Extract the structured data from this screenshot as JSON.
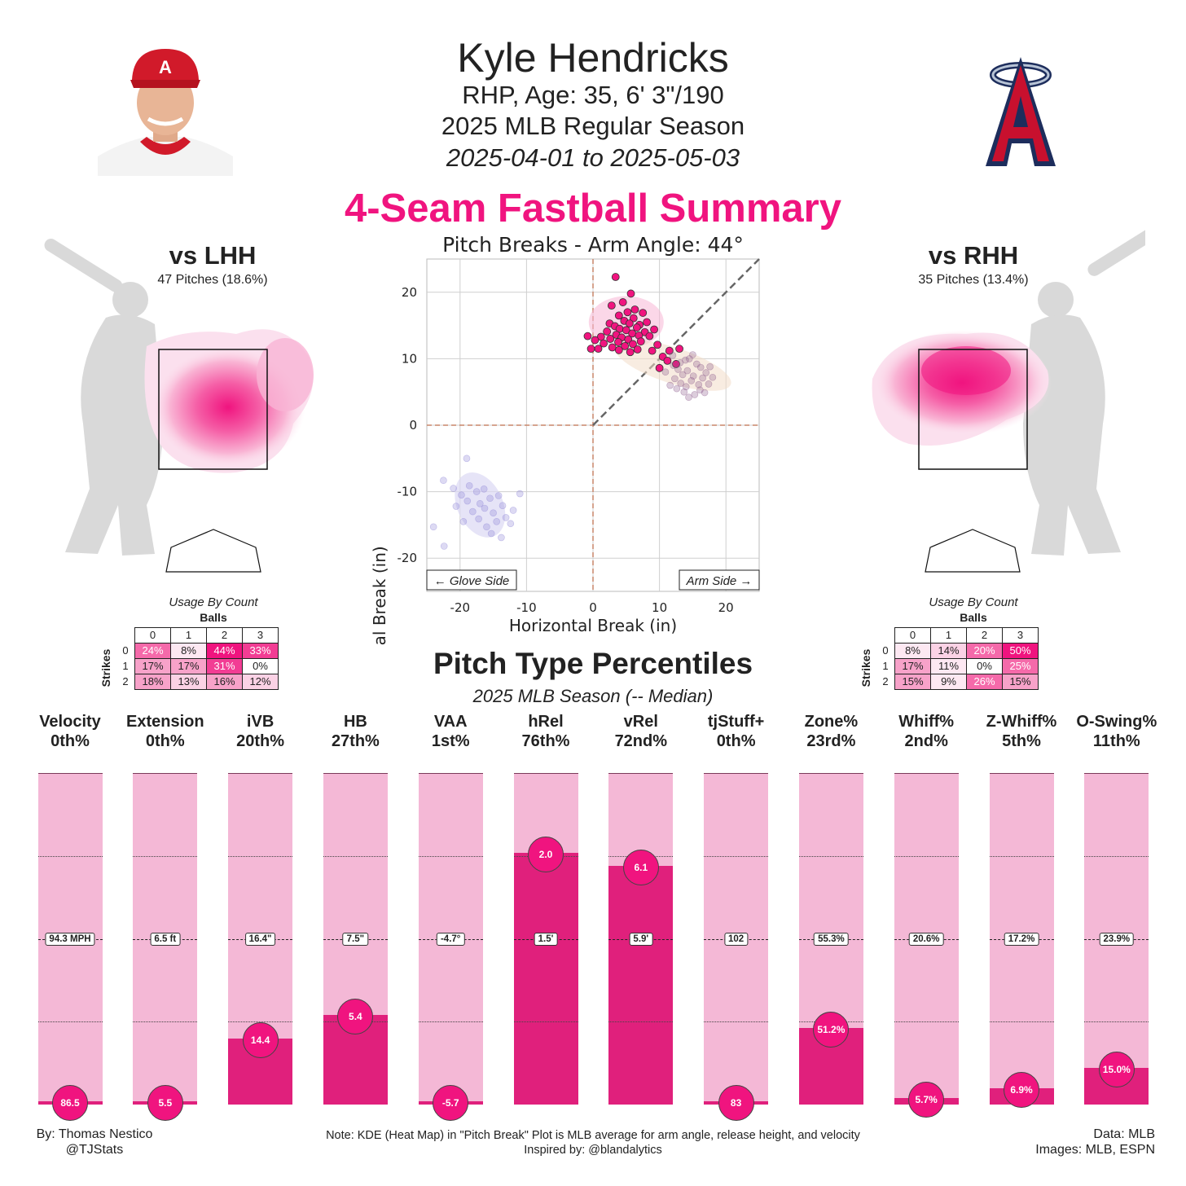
{
  "header": {
    "name": "Kyle Hendricks",
    "info": "RHP, Age: 35, 6' 3\"/190",
    "season": "2025 MLB Regular Season",
    "dates": "2025-04-01 to 2025-05-03",
    "summary_title": "4-Seam Fastball Summary"
  },
  "lhh": {
    "title": "vs LHH",
    "pitches": "47 Pitches (18.6%)",
    "usage_title": "Usage By Count",
    "balls_label": "Balls",
    "strikes_label": "Strikes",
    "ball_headers": [
      "0",
      "1",
      "2",
      "3"
    ],
    "rows": [
      {
        "strikes": "0",
        "cells": [
          "24%",
          "8%",
          "44%",
          "33%"
        ]
      },
      {
        "strikes": "1",
        "cells": [
          "17%",
          "17%",
          "31%",
          "0%"
        ]
      },
      {
        "strikes": "2",
        "cells": [
          "18%",
          "13%",
          "16%",
          "12%"
        ]
      }
    ]
  },
  "rhh": {
    "title": "vs RHH",
    "pitches": "35 Pitches (13.4%)",
    "usage_title": "Usage By Count",
    "balls_label": "Balls",
    "strikes_label": "Strikes",
    "ball_headers": [
      "0",
      "1",
      "2",
      "3"
    ],
    "rows": [
      {
        "strikes": "0",
        "cells": [
          "8%",
          "14%",
          "20%",
          "50%"
        ]
      },
      {
        "strikes": "1",
        "cells": [
          "17%",
          "11%",
          "0%",
          "25%"
        ]
      },
      {
        "strikes": "2",
        "cells": [
          "15%",
          "9%",
          "26%",
          "15%"
        ]
      }
    ]
  },
  "break_plot": {
    "title": "Pitch Breaks - Arm Angle: 44°",
    "xlabel": "Horizontal Break (in)",
    "ylabel": "Induced Vertical Break (in)",
    "glove_side": "← Glove Side",
    "arm_side": "Arm Side →"
  },
  "percentiles": {
    "title": "Pitch Type Percentiles",
    "subtitle": "2025 MLB Season (-- Median)"
  },
  "footer": {
    "by": "By: Thomas Nestico",
    "handle": "@TJStats",
    "note": "Note: KDE (Heat Map) in \"Pitch Break\" Plot is MLB average for arm angle, release height, and velocity",
    "inspired": "Inspired by: @blandalytics",
    "data": "Data: MLB",
    "images": "Images: MLB, ESPN"
  },
  "colors": {
    "accent": "#f0147f",
    "bar_bg": "#f4b8d6",
    "bar_fill": "#e0207c"
  },
  "chart_data": [
    {
      "type": "scatter",
      "title": "Pitch Breaks - Arm Angle: 44°",
      "xlabel": "Horizontal Break (in)",
      "ylabel": "Induced Vertical Break (in)",
      "xlim": [
        -25,
        25
      ],
      "ylim": [
        -25,
        25
      ],
      "xticks": [
        -20,
        -10,
        0,
        10,
        20
      ],
      "yticks": [
        -20,
        -10,
        0,
        10,
        20
      ],
      "grid": true,
      "series": [
        {
          "kind": "4-Seam Fastball",
          "color": "#f0147f",
          "points": [
            [
              3.4,
              22.3
            ],
            [
              5.7,
              19.8
            ],
            [
              4.5,
              18.5
            ],
            [
              2.8,
              18.0
            ],
            [
              6.3,
              17.4
            ],
            [
              5.2,
              17.0
            ],
            [
              7.5,
              16.9
            ],
            [
              3.9,
              16.5
            ],
            [
              6.1,
              16.1
            ],
            [
              4.7,
              15.7
            ],
            [
              2.5,
              15.3
            ],
            [
              8.1,
              15.5
            ],
            [
              5.5,
              15.3
            ],
            [
              7.0,
              15.1
            ],
            [
              3.3,
              14.9
            ],
            [
              6.6,
              14.7
            ],
            [
              4.0,
              14.5
            ],
            [
              5.0,
              14.3
            ],
            [
              9.2,
              14.4
            ],
            [
              2.1,
              14.1
            ],
            [
              7.8,
              14.0
            ],
            [
              5.9,
              13.8
            ],
            [
              3.5,
              13.6
            ],
            [
              6.9,
              13.5
            ],
            [
              1.2,
              13.3
            ],
            [
              4.3,
              13.2
            ],
            [
              8.5,
              13.4
            ],
            [
              -0.8,
              13.4
            ],
            [
              2.6,
              13.0
            ],
            [
              5.3,
              12.9
            ],
            [
              0.3,
              12.8
            ],
            [
              7.2,
              12.6
            ],
            [
              3.8,
              12.5
            ],
            [
              1.6,
              12.3
            ],
            [
              6.0,
              12.2
            ],
            [
              9.7,
              12.1
            ],
            [
              4.8,
              11.9
            ],
            [
              2.9,
              11.7
            ],
            [
              0.8,
              11.5
            ],
            [
              -0.3,
              11.5
            ],
            [
              6.7,
              11.4
            ],
            [
              3.9,
              11.3
            ],
            [
              8.9,
              11.2
            ],
            [
              11.5,
              11.2
            ],
            [
              5.6,
              11.0
            ],
            [
              13.0,
              11.5
            ],
            [
              10.5,
              10.3
            ],
            [
              11.2,
              9.7
            ],
            [
              12.5,
              9.2
            ],
            [
              10.0,
              8.6
            ]
          ]
        },
        {
          "kind": "Changeup / Sinker (ghost)",
          "color": "#8b5a8c",
          "points": [
            [
              12.0,
              10.5
            ],
            [
              14.5,
              10.0
            ],
            [
              13.1,
              9.4
            ],
            [
              15.6,
              9.2
            ],
            [
              16.2,
              8.7
            ],
            [
              12.8,
              8.4
            ],
            [
              14.2,
              8.2
            ],
            [
              17.0,
              7.9
            ],
            [
              13.5,
              7.6
            ],
            [
              15.1,
              7.4
            ],
            [
              16.5,
              7.1
            ],
            [
              12.3,
              7.0
            ],
            [
              14.8,
              6.7
            ],
            [
              13.2,
              6.3
            ],
            [
              15.9,
              6.1
            ],
            [
              17.4,
              6.2
            ],
            [
              14.0,
              5.8
            ],
            [
              16.1,
              5.3
            ],
            [
              13.7,
              5.0
            ],
            [
              15.3,
              4.6
            ],
            [
              11.6,
              6.0
            ],
            [
              18.0,
              7.2
            ],
            [
              12.6,
              5.5
            ],
            [
              14.4,
              4.2
            ],
            [
              16.8,
              4.9
            ],
            [
              10.9,
              8.0
            ],
            [
              13.9,
              9.8
            ],
            [
              15.0,
              10.6
            ],
            [
              17.6,
              8.8
            ],
            [
              12.1,
              9.0
            ]
          ]
        },
        {
          "kind": "Curveball (ghost)",
          "color": "#8f86d8",
          "points": [
            [
              -22.5,
              -8.3
            ],
            [
              -19.0,
              -5.0
            ],
            [
              -21.0,
              -9.5
            ],
            [
              -18.6,
              -9.1
            ],
            [
              -19.8,
              -10.5
            ],
            [
              -17.5,
              -10.0
            ],
            [
              -16.4,
              -9.6
            ],
            [
              -18.9,
              -11.4
            ],
            [
              -17.0,
              -11.8
            ],
            [
              -15.5,
              -11.0
            ],
            [
              -14.2,
              -10.6
            ],
            [
              -16.3,
              -12.5
            ],
            [
              -18.1,
              -13.0
            ],
            [
              -15.0,
              -13.2
            ],
            [
              -13.6,
              -12.1
            ],
            [
              -17.2,
              -14.1
            ],
            [
              -14.5,
              -14.5
            ],
            [
              -16.0,
              -15.3
            ],
            [
              -13.1,
              -13.9
            ],
            [
              -12.4,
              -14.8
            ],
            [
              -15.3,
              -16.3
            ],
            [
              -13.8,
              -16.9
            ],
            [
              -11.0,
              -10.3
            ],
            [
              -20.6,
              -12.2
            ],
            [
              -24.0,
              -15.3
            ],
            [
              -22.4,
              -18.2
            ],
            [
              -19.5,
              -14.5
            ],
            [
              -12.0,
              -12.8
            ]
          ]
        }
      ]
    },
    {
      "type": "bar",
      "title": "Pitch Type Percentiles",
      "subtitle": "2025 MLB Season (-- Median)",
      "ylim": [
        0,
        100
      ],
      "categories": [
        "Velocity",
        "Extension",
        "iVB",
        "HB",
        "VAA",
        "hRel",
        "vRel",
        "tjStuff+",
        "Zone%",
        "Whiff%",
        "Z-Whiff%",
        "O-Swing%"
      ],
      "percentile_labels": [
        "0th%",
        "0th%",
        "20th%",
        "27th%",
        "1st%",
        "76th%",
        "72nd%",
        "0th%",
        "23rd%",
        "2nd%",
        "5th%",
        "11th%"
      ],
      "percentiles": [
        0,
        0,
        20,
        27,
        1,
        76,
        72,
        0,
        23,
        2,
        5,
        11
      ],
      "values": [
        "86.5",
        "5.5",
        "14.4",
        "5.4",
        "-5.7",
        "2.0",
        "6.1",
        "83",
        "51.2%",
        "5.7%",
        "6.9%",
        "15.0%"
      ],
      "medians": [
        "94.3 MPH",
        "6.5 ft",
        "16.4\"",
        "7.5\"",
        "-4.7°",
        "1.5'",
        "5.9'",
        "102",
        "55.3%",
        "20.6%",
        "17.2%",
        "23.9%"
      ]
    }
  ]
}
